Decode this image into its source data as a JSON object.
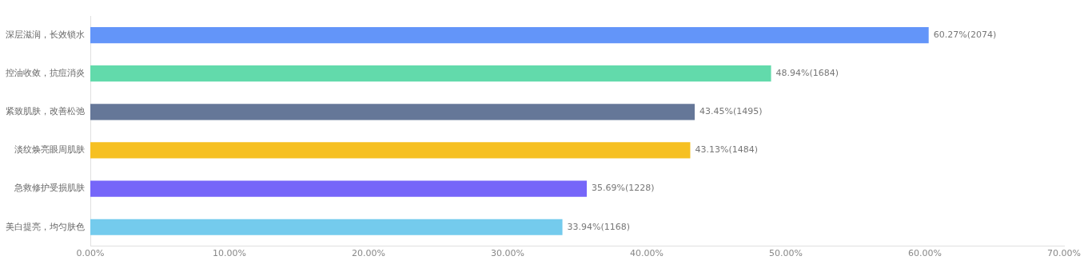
{
  "chart_data": {
    "type": "bar",
    "orientation": "horizontal",
    "categories": [
      "深层滋润，长效锁水",
      "控油收敛，抗痘消炎",
      "紧致肌肤，改善松弛",
      "淡纹焕亮眼周肌肤",
      "急救修护受损肌肤",
      "美白提亮，均匀肤色"
    ],
    "values": [
      60.27,
      48.94,
      43.45,
      43.13,
      35.69,
      33.94
    ],
    "colors": [
      "#6395f9",
      "#62daab",
      "#657798",
      "#f6c022",
      "#7666f9",
      "#74cbed"
    ],
    "value_labels": [
      "60.27%(2074)",
      "48.94%(1684)",
      "43.45%(1495)",
      "43.13%(1484)",
      "35.69%(1228)",
      "33.94%(1168)"
    ],
    "xlim": [
      0,
      70
    ],
    "xticks": [
      {
        "value": 0,
        "label": "0.00%"
      },
      {
        "value": 10,
        "label": "10.00%"
      },
      {
        "value": 20,
        "label": "20.00%"
      },
      {
        "value": 30,
        "label": "30.00%"
      },
      {
        "value": 40,
        "label": "40.00%"
      },
      {
        "value": 50,
        "label": "50.00%"
      },
      {
        "value": 60,
        "label": "60.00%"
      },
      {
        "value": 70,
        "label": "70.00%"
      }
    ],
    "grid": false,
    "legend": false
  }
}
